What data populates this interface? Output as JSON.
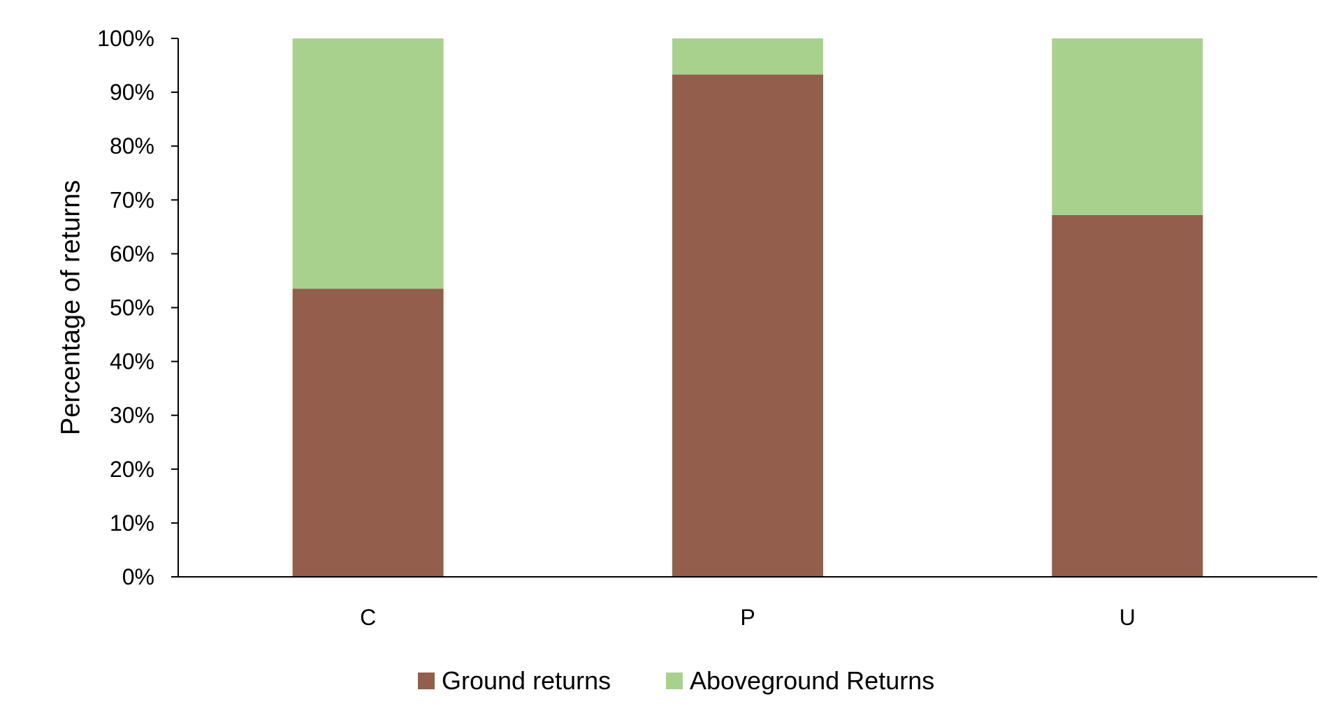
{
  "chart_data": {
    "type": "bar",
    "stacked": true,
    "categories": [
      "C",
      "P",
      "U"
    ],
    "series": [
      {
        "name": "Ground returns",
        "color": "#935e4c",
        "values": [
          53.5,
          93.3,
          67.2
        ]
      },
      {
        "name": "Aboveground Returns",
        "color": "#a9d18e",
        "values": [
          46.5,
          6.7,
          32.8
        ]
      }
    ],
    "title": "",
    "xlabel": "",
    "ylabel": "Percentage of returns",
    "ylim": [
      0,
      100
    ],
    "yticks": [
      "0%",
      "10%",
      "20%",
      "30%",
      "40%",
      "50%",
      "60%",
      "70%",
      "80%",
      "90%",
      "100%"
    ],
    "grid": false,
    "legend_position": "bottom"
  }
}
